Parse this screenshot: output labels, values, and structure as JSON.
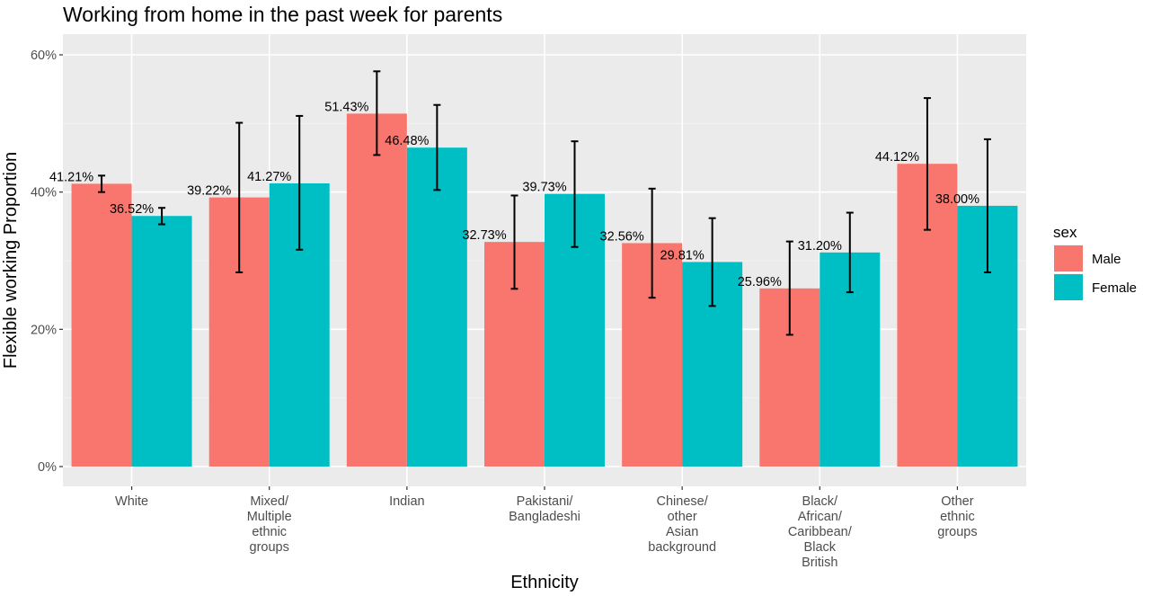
{
  "chart_data": {
    "type": "bar",
    "title": "Working from home in the past week for parents",
    "xlabel": "Ethnicity",
    "ylabel": "Flexible working Proportion",
    "ylim": [
      0,
      0.6
    ],
    "yticks": [
      0,
      0.2,
      0.4,
      0.6
    ],
    "ytick_labels": [
      "0%",
      "20%",
      "40%",
      "60%"
    ],
    "grid": true,
    "legend_position": "right",
    "legend_title": "sex",
    "categories": [
      [
        "White"
      ],
      [
        "Mixed/",
        "Multiple",
        "ethnic",
        "groups"
      ],
      [
        "Indian"
      ],
      [
        "Pakistani/",
        "Bangladeshi"
      ],
      [
        "Chinese/",
        "other",
        "Asian",
        "background"
      ],
      [
        "Black/",
        "African/",
        "Caribbean/",
        "Black",
        "British"
      ],
      [
        "Other",
        "ethnic",
        "groups"
      ]
    ],
    "series": [
      {
        "name": "Male",
        "color": "#F8766D",
        "values": [
          0.4121,
          0.3922,
          0.5143,
          0.3273,
          0.3256,
          0.2596,
          0.4412
        ],
        "labels": [
          "41.21%",
          "39.22%",
          "51.43%",
          "32.73%",
          "32.56%",
          "25.96%",
          "44.12%"
        ],
        "error_low": [
          0.4,
          0.283,
          0.454,
          0.259,
          0.246,
          0.192,
          0.345
        ],
        "error_high": [
          0.424,
          0.501,
          0.576,
          0.395,
          0.405,
          0.328,
          0.537
        ]
      },
      {
        "name": "Female",
        "color": "#00BFC4",
        "values": [
          0.3652,
          0.4127,
          0.4648,
          0.3973,
          0.2981,
          0.312,
          0.38
        ],
        "labels": [
          "36.52%",
          "41.27%",
          "46.48%",
          "39.73%",
          "29.81%",
          "31.20%",
          "38.00%"
        ],
        "error_low": [
          0.353,
          0.316,
          0.403,
          0.32,
          0.234,
          0.254,
          0.283
        ],
        "error_high": [
          0.377,
          0.511,
          0.527,
          0.474,
          0.362,
          0.37,
          0.477
        ]
      }
    ]
  }
}
